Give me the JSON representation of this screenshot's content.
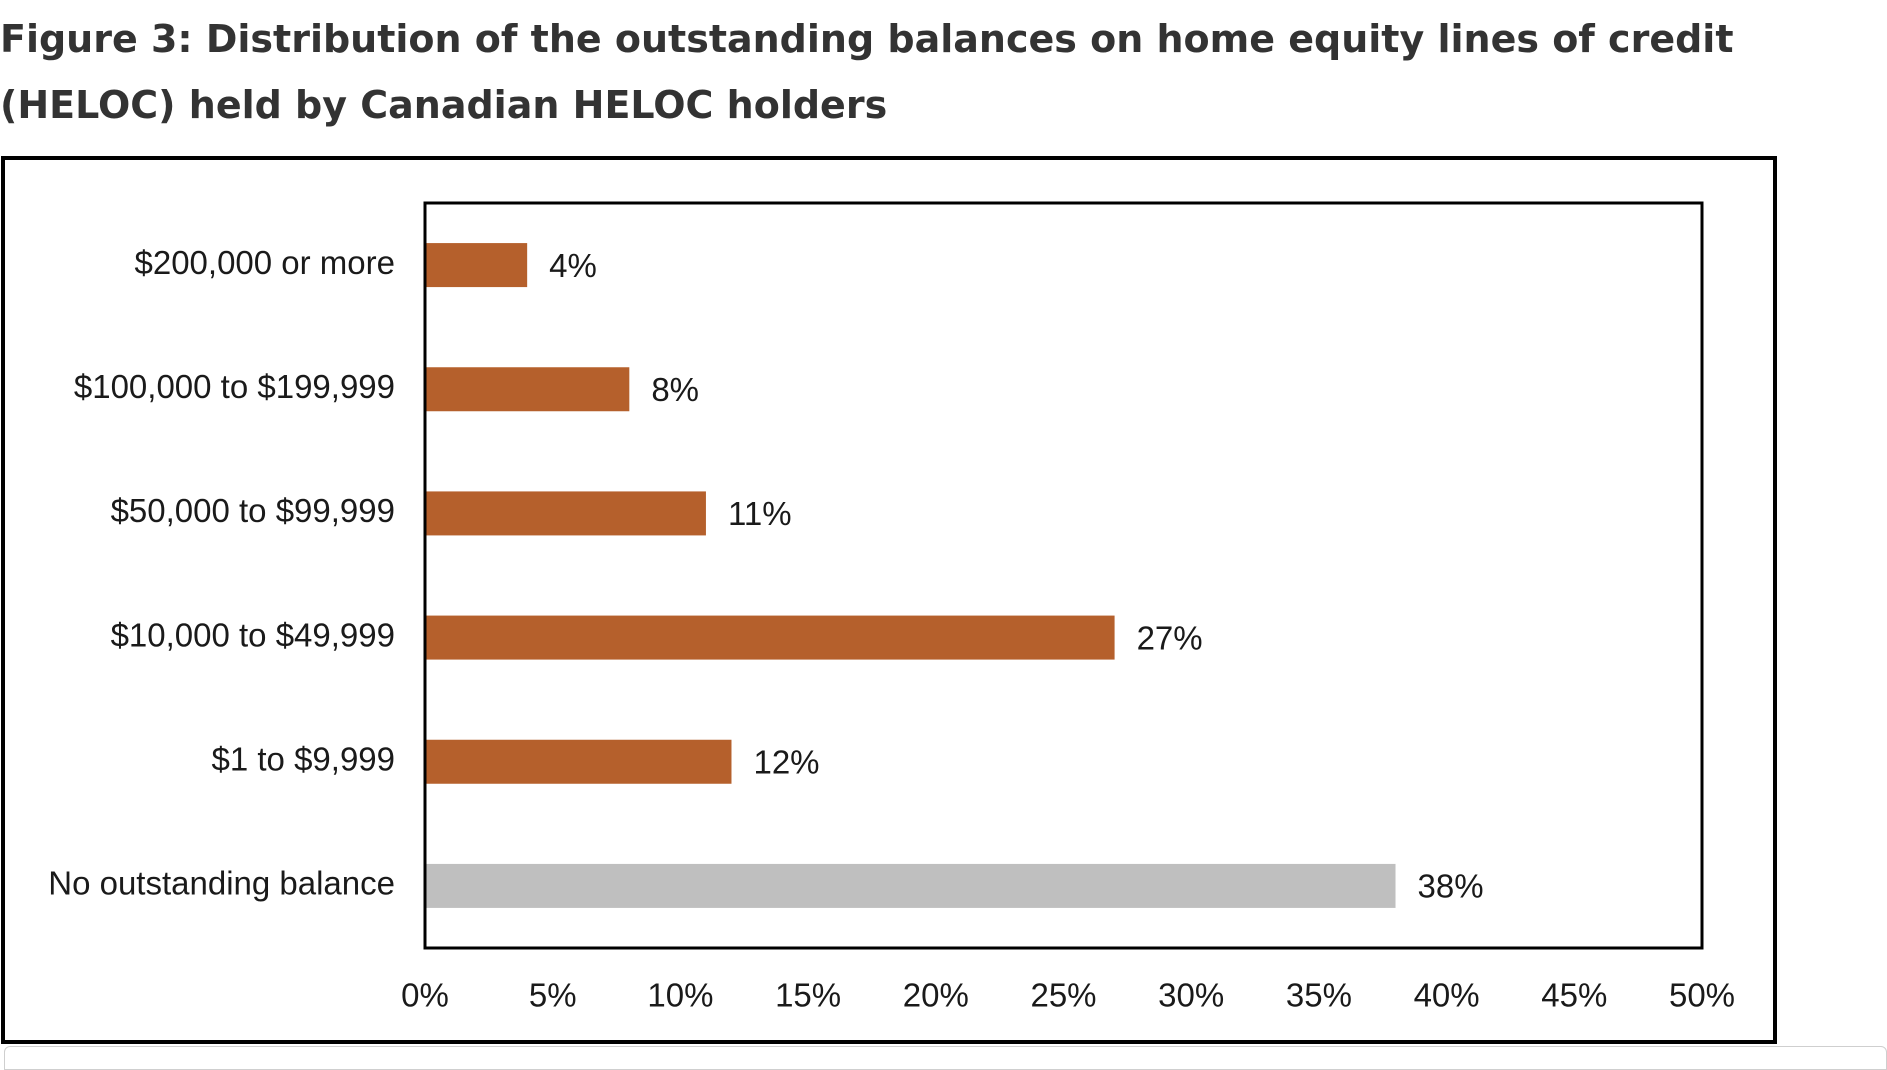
{
  "title": "Figure 3: Distribution of the outstanding balances on home equity lines of credit (HELOC) held by Canadian HELOC holders",
  "colors": {
    "balance_bar": "#b5602c",
    "no_balance_bar": "#bfbfbf",
    "axis": "#000000",
    "text": "#1a1a1a"
  },
  "chart_data": {
    "type": "bar",
    "orientation": "horizontal",
    "categories": [
      "$200,000 or more",
      "$100,000 to $199,999",
      "$50,000 to $99,999",
      "$10,000 to $49,999",
      "$1 to $9,999",
      "No outstanding balance"
    ],
    "values": [
      4,
      8,
      11,
      27,
      12,
      38
    ],
    "value_labels": [
      "4%",
      "8%",
      "11%",
      "27%",
      "12%",
      "38%"
    ],
    "bar_colors": [
      "#b5602c",
      "#b5602c",
      "#b5602c",
      "#b5602c",
      "#b5602c",
      "#bfbfbf"
    ],
    "xlim": [
      0,
      50
    ],
    "xticks": [
      0,
      5,
      10,
      15,
      20,
      25,
      30,
      35,
      40,
      45,
      50
    ],
    "xtick_labels": [
      "0%",
      "5%",
      "10%",
      "15%",
      "20%",
      "25%",
      "30%",
      "35%",
      "40%",
      "45%",
      "50%"
    ],
    "grid": false,
    "legend": "none"
  }
}
